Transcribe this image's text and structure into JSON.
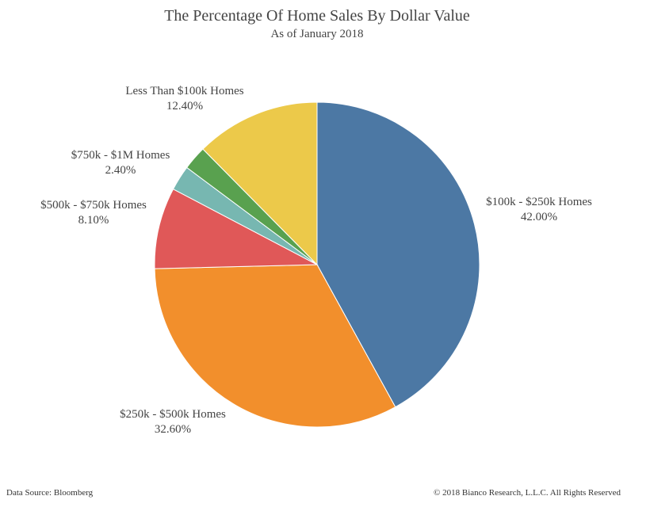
{
  "chart_data": {
    "type": "pie",
    "title": "The Percentage Of Home Sales By Dollar Value",
    "subtitle": "As of January 2018",
    "slices": [
      {
        "label": "$100k - $250k Homes",
        "value": 42.0,
        "value_label": "42.00%",
        "color": "#4c78a4"
      },
      {
        "label": "$250k - $500k Homes",
        "value": 32.6,
        "value_label": "32.60%",
        "color": "#f28f2c"
      },
      {
        "label": "$500k - $750k Homes",
        "value": 8.1,
        "value_label": "8.10%",
        "color": "#e05858"
      },
      {
        "label": "",
        "value": 2.5,
        "value_label": "",
        "color": "#77b7b1"
      },
      {
        "label": "$750k - $1M Homes",
        "value": 2.4,
        "value_label": "2.40%",
        "color": "#59a14f"
      },
      {
        "label": "Less Than $100k Homes",
        "value": 12.4,
        "value_label": "12.40%",
        "color": "#ecc94a"
      }
    ]
  },
  "footer": {
    "source": "Data Source: Bloomberg",
    "copyright": "© 2018 Bianco Research, L.L.C. All Rights Reserved"
  }
}
